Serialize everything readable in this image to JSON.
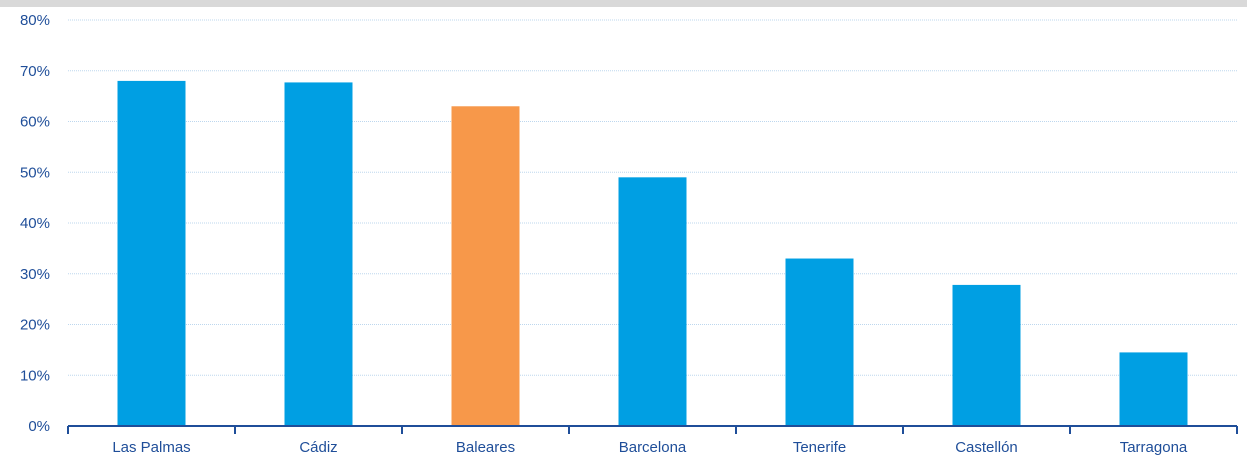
{
  "chart_data": {
    "type": "bar",
    "categories": [
      "Las Palmas",
      "Cádiz",
      "Baleares",
      "Barcelona",
      "Tenerife",
      "Castellón",
      "Tarragona"
    ],
    "values": [
      68,
      67.7,
      63,
      49,
      33,
      27.8,
      14.5
    ],
    "highlight_index": 2,
    "colors": {
      "bar": "#009fe3",
      "highlight": "#f7984a",
      "text": "#1f4e99",
      "grid": "#bdd7ee"
    },
    "ylim": [
      0,
      80
    ],
    "yticks": [
      0,
      10,
      20,
      30,
      40,
      50,
      60,
      70,
      80
    ],
    "ytick_labels": [
      "0%",
      "10%",
      "20%",
      "30%",
      "40%",
      "50%",
      "60%",
      "70%",
      "80%"
    ],
    "grid": true,
    "title": "",
    "xlabel": "",
    "ylabel": ""
  }
}
